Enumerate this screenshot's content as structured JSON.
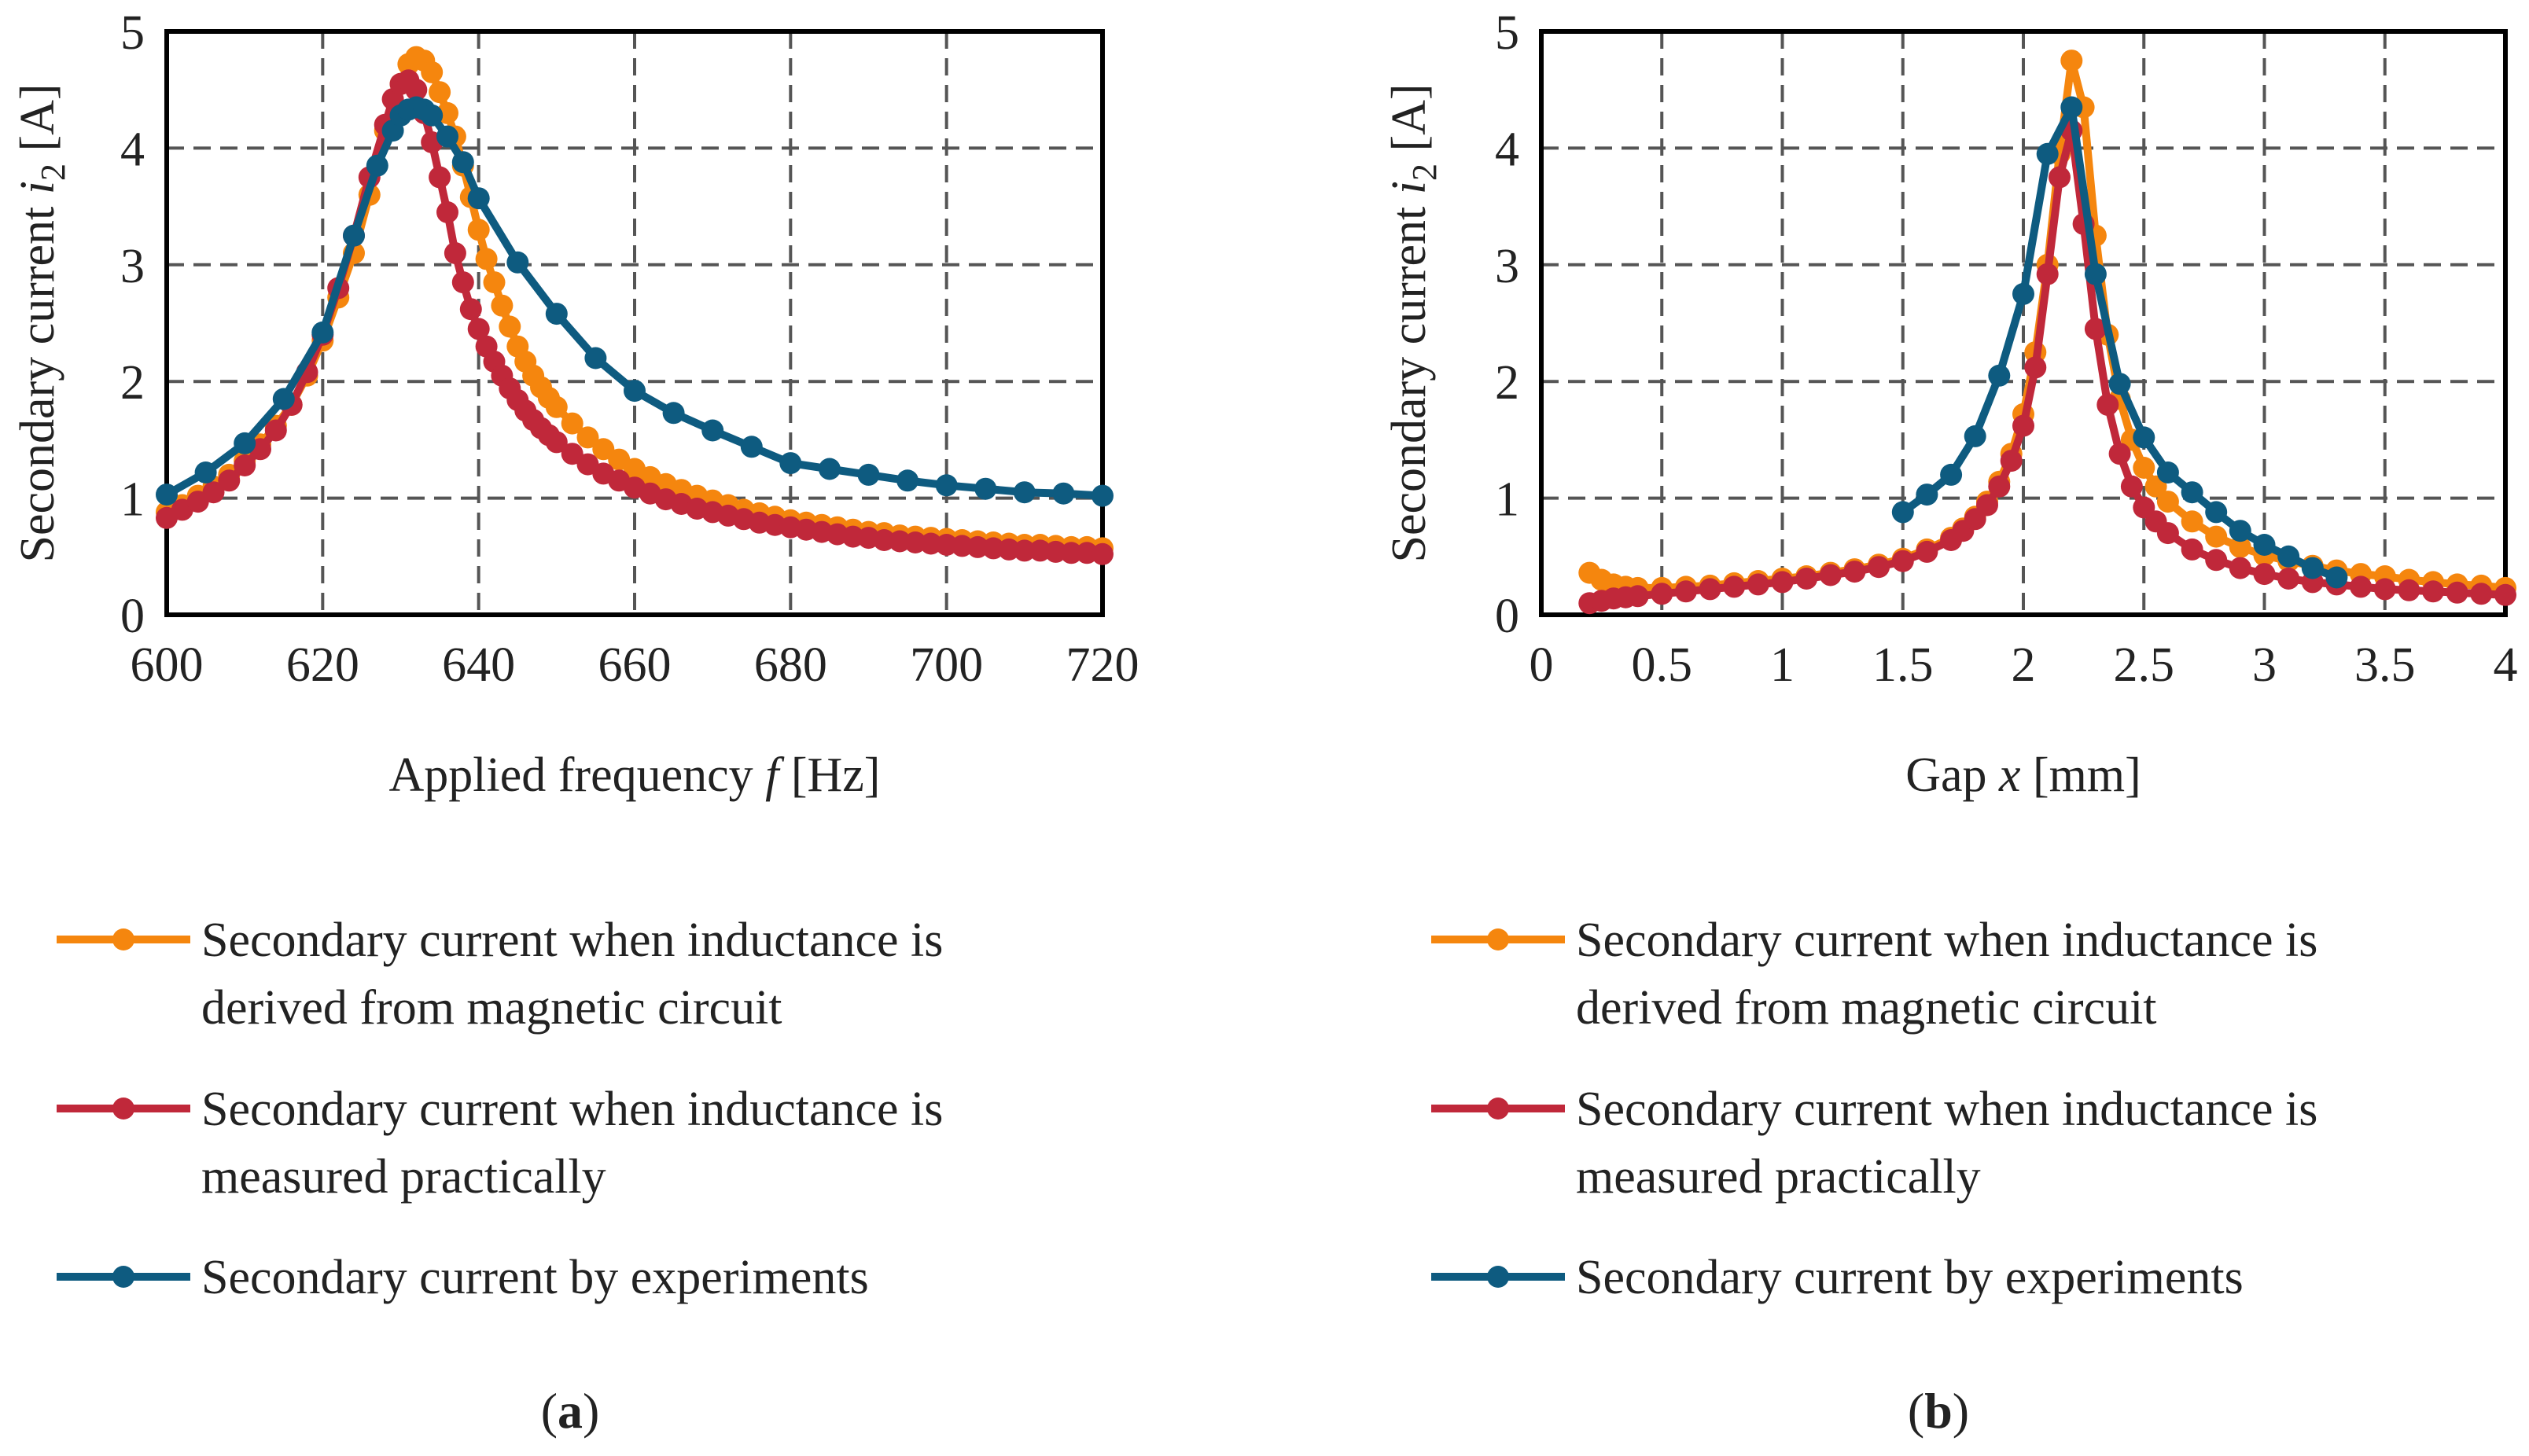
{
  "colors": {
    "orange": "#F5860E",
    "red": "#C0283A",
    "blue": "#0E5B80",
    "grid": "#555555",
    "axis": "#000000"
  },
  "chart_data": [
    {
      "type": "line",
      "panel_label": "a",
      "xlabel_prefix": "Applied frequency ",
      "xlabel_var": "f",
      "xlabel_suffix": " [Hz]",
      "ylabel_prefix": "Secondary current ",
      "ylabel_var": "i",
      "ylabel_sub": "2",
      "ylabel_suffix": " [A]",
      "xlim": [
        600,
        720
      ],
      "ylim": [
        0,
        5
      ],
      "grid": true,
      "legend_position": "bottom",
      "xticks": [
        {
          "value": 600,
          "label": "600"
        },
        {
          "value": 620,
          "label": "620"
        },
        {
          "value": 640,
          "label": "640"
        },
        {
          "value": 660,
          "label": "660"
        },
        {
          "value": 680,
          "label": "680"
        },
        {
          "value": 700,
          "label": "700"
        },
        {
          "value": 720,
          "label": "720"
        }
      ],
      "yticks": [
        {
          "value": 0,
          "label": "0"
        },
        {
          "value": 1,
          "label": "1"
        },
        {
          "value": 2,
          "label": "2"
        },
        {
          "value": 3,
          "label": "3"
        },
        {
          "value": 4,
          "label": "4"
        },
        {
          "value": 5,
          "label": "5"
        }
      ],
      "series": [
        {
          "name": "Secondary current when inductance is derived from magnetic circuit",
          "legend_lines": [
            "Secondary current when inductance is",
            "derived from magnetic circuit"
          ],
          "color_key": "orange",
          "x": [
            600,
            602,
            604,
            606,
            608,
            610,
            612,
            614,
            616,
            618,
            620,
            622,
            624,
            626,
            628,
            630,
            631,
            632,
            633,
            634,
            635,
            636,
            637,
            638,
            639,
            640,
            641,
            642,
            643,
            644,
            645,
            646,
            647,
            648,
            649,
            650,
            652,
            654,
            656,
            658,
            660,
            662,
            664,
            666,
            668,
            670,
            672,
            674,
            676,
            678,
            680,
            682,
            684,
            686,
            688,
            690,
            692,
            694,
            696,
            698,
            700,
            702,
            704,
            706,
            708,
            710,
            712,
            714,
            716,
            718,
            720
          ],
          "y": [
            0.88,
            0.94,
            1.02,
            1.1,
            1.2,
            1.32,
            1.46,
            1.62,
            1.8,
            2.05,
            2.35,
            2.72,
            3.1,
            3.6,
            4.15,
            4.55,
            4.72,
            4.78,
            4.75,
            4.65,
            4.48,
            4.3,
            4.1,
            3.85,
            3.58,
            3.3,
            3.05,
            2.85,
            2.65,
            2.47,
            2.3,
            2.17,
            2.05,
            1.95,
            1.86,
            1.78,
            1.64,
            1.52,
            1.42,
            1.33,
            1.25,
            1.18,
            1.12,
            1.07,
            1.02,
            0.98,
            0.94,
            0.9,
            0.87,
            0.84,
            0.81,
            0.79,
            0.77,
            0.75,
            0.73,
            0.71,
            0.7,
            0.68,
            0.67,
            0.66,
            0.65,
            0.64,
            0.63,
            0.62,
            0.61,
            0.6,
            0.6,
            0.59,
            0.58,
            0.58,
            0.57
          ]
        },
        {
          "name": "Secondary current when inductance is measured practically",
          "legend_lines": [
            "Secondary current when inductance is",
            "measured practically"
          ],
          "color_key": "red",
          "x": [
            600,
            602,
            604,
            606,
            608,
            610,
            612,
            614,
            616,
            618,
            620,
            622,
            624,
            626,
            628,
            629,
            630,
            631,
            632,
            633,
            634,
            635,
            636,
            637,
            638,
            639,
            640,
            641,
            642,
            643,
            644,
            645,
            646,
            647,
            648,
            649,
            650,
            652,
            654,
            656,
            658,
            660,
            662,
            664,
            666,
            668,
            670,
            672,
            674,
            676,
            678,
            680,
            682,
            684,
            686,
            688,
            690,
            692,
            694,
            696,
            698,
            700,
            702,
            704,
            706,
            708,
            710,
            712,
            714,
            716,
            718,
            720
          ],
          "y": [
            0.83,
            0.9,
            0.97,
            1.05,
            1.15,
            1.28,
            1.42,
            1.58,
            1.8,
            2.08,
            2.4,
            2.8,
            3.25,
            3.75,
            4.2,
            4.42,
            4.55,
            4.58,
            4.5,
            4.3,
            4.05,
            3.75,
            3.45,
            3.1,
            2.85,
            2.62,
            2.45,
            2.3,
            2.17,
            2.05,
            1.94,
            1.84,
            1.75,
            1.67,
            1.6,
            1.54,
            1.48,
            1.38,
            1.29,
            1.21,
            1.15,
            1.09,
            1.04,
            0.99,
            0.95,
            0.91,
            0.88,
            0.85,
            0.82,
            0.79,
            0.77,
            0.75,
            0.73,
            0.71,
            0.69,
            0.67,
            0.66,
            0.64,
            0.63,
            0.62,
            0.61,
            0.6,
            0.59,
            0.58,
            0.57,
            0.56,
            0.55,
            0.55,
            0.54,
            0.53,
            0.53,
            0.52
          ]
        },
        {
          "name": "Secondary current by experiments",
          "legend_lines": [
            "Secondary current by experiments"
          ],
          "color_key": "blue",
          "x": [
            600,
            605,
            610,
            615,
            620,
            624,
            627,
            629,
            630,
            631,
            632,
            633,
            634,
            636,
            638,
            640,
            645,
            650,
            655,
            660,
            665,
            670,
            675,
            680,
            685,
            690,
            695,
            700,
            705,
            710,
            715,
            720
          ],
          "y": [
            1.03,
            1.22,
            1.47,
            1.85,
            2.42,
            3.25,
            3.85,
            4.15,
            4.28,
            4.33,
            4.35,
            4.33,
            4.28,
            4.1,
            3.88,
            3.57,
            3.02,
            2.58,
            2.2,
            1.92,
            1.73,
            1.58,
            1.44,
            1.3,
            1.25,
            1.2,
            1.15,
            1.11,
            1.08,
            1.05,
            1.04,
            1.02
          ]
        }
      ]
    },
    {
      "type": "line",
      "panel_label": "b",
      "xlabel_prefix": "Gap ",
      "xlabel_var": "x",
      "xlabel_suffix": " [mm]",
      "ylabel_prefix": "Secondary current ",
      "ylabel_var": "i",
      "ylabel_sub": "2",
      "ylabel_suffix": " [A]",
      "xlim": [
        0,
        4
      ],
      "ylim": [
        0,
        5
      ],
      "grid": true,
      "legend_position": "bottom",
      "xticks": [
        {
          "value": 0,
          "label": "0"
        },
        {
          "value": 0.5,
          "label": "0.5"
        },
        {
          "value": 1,
          "label": "1"
        },
        {
          "value": 1.5,
          "label": "1.5"
        },
        {
          "value": 2,
          "label": "2"
        },
        {
          "value": 2.5,
          "label": "2.5"
        },
        {
          "value": 3,
          "label": "3"
        },
        {
          "value": 3.5,
          "label": "3.5"
        },
        {
          "value": 4,
          "label": "4"
        }
      ],
      "yticks": [
        {
          "value": 0,
          "label": "0"
        },
        {
          "value": 1,
          "label": "1"
        },
        {
          "value": 2,
          "label": "2"
        },
        {
          "value": 3,
          "label": "3"
        },
        {
          "value": 4,
          "label": "4"
        },
        {
          "value": 5,
          "label": "5"
        }
      ],
      "series": [
        {
          "name": "Secondary current when inductance is derived from magnetic circuit",
          "legend_lines": [
            "Secondary current when inductance is",
            "derived from magnetic circuit"
          ],
          "color_key": "orange",
          "x": [
            0.2,
            0.25,
            0.3,
            0.35,
            0.4,
            0.5,
            0.6,
            0.7,
            0.8,
            0.9,
            1.0,
            1.1,
            1.2,
            1.3,
            1.4,
            1.5,
            1.6,
            1.7,
            1.75,
            1.8,
            1.85,
            1.9,
            1.95,
            2.0,
            2.05,
            2.1,
            2.15,
            2.2,
            2.25,
            2.3,
            2.35,
            2.4,
            2.45,
            2.5,
            2.55,
            2.6,
            2.7,
            2.8,
            2.9,
            3.0,
            3.1,
            3.2,
            3.3,
            3.4,
            3.5,
            3.6,
            3.7,
            3.8,
            3.9,
            4.0
          ],
          "y": [
            0.36,
            0.3,
            0.26,
            0.24,
            0.23,
            0.23,
            0.24,
            0.25,
            0.27,
            0.29,
            0.31,
            0.33,
            0.36,
            0.39,
            0.43,
            0.48,
            0.56,
            0.66,
            0.74,
            0.84,
            0.97,
            1.14,
            1.38,
            1.72,
            2.25,
            3.0,
            3.95,
            4.75,
            4.35,
            3.25,
            2.4,
            1.85,
            1.5,
            1.26,
            1.1,
            0.97,
            0.8,
            0.67,
            0.58,
            0.51,
            0.46,
            0.42,
            0.38,
            0.35,
            0.33,
            0.3,
            0.28,
            0.26,
            0.25,
            0.23
          ]
        },
        {
          "name": "Secondary current when inductance is measured practically",
          "legend_lines": [
            "Secondary current when inductance is",
            "measured practically"
          ],
          "color_key": "red",
          "x": [
            0.2,
            0.25,
            0.3,
            0.35,
            0.4,
            0.5,
            0.6,
            0.7,
            0.8,
            0.9,
            1.0,
            1.1,
            1.2,
            1.3,
            1.4,
            1.5,
            1.6,
            1.7,
            1.75,
            1.8,
            1.85,
            1.9,
            1.95,
            2.0,
            2.05,
            2.1,
            2.15,
            2.2,
            2.25,
            2.3,
            2.35,
            2.4,
            2.45,
            2.5,
            2.55,
            2.6,
            2.7,
            2.8,
            2.9,
            3.0,
            3.1,
            3.2,
            3.3,
            3.4,
            3.5,
            3.6,
            3.7,
            3.8,
            3.9,
            4.0
          ],
          "y": [
            0.1,
            0.12,
            0.14,
            0.15,
            0.16,
            0.18,
            0.2,
            0.22,
            0.24,
            0.26,
            0.28,
            0.31,
            0.34,
            0.37,
            0.41,
            0.46,
            0.54,
            0.64,
            0.72,
            0.82,
            0.94,
            1.1,
            1.32,
            1.62,
            2.12,
            2.92,
            3.75,
            4.15,
            3.35,
            2.45,
            1.8,
            1.38,
            1.1,
            0.92,
            0.8,
            0.7,
            0.56,
            0.47,
            0.4,
            0.35,
            0.31,
            0.28,
            0.26,
            0.24,
            0.22,
            0.21,
            0.2,
            0.19,
            0.18,
            0.17
          ]
        },
        {
          "name": "Secondary current by experiments",
          "legend_lines": [
            "Secondary current by experiments"
          ],
          "color_key": "blue",
          "x": [
            1.5,
            1.6,
            1.7,
            1.8,
            1.9,
            2.0,
            2.1,
            2.2,
            2.3,
            2.4,
            2.5,
            2.6,
            2.7,
            2.8,
            2.9,
            3.0,
            3.1,
            3.2,
            3.3
          ],
          "y": [
            0.88,
            1.03,
            1.2,
            1.53,
            2.05,
            2.75,
            3.95,
            4.35,
            2.92,
            1.98,
            1.52,
            1.22,
            1.05,
            0.88,
            0.72,
            0.6,
            0.5,
            0.4,
            0.32
          ]
        }
      ]
    }
  ]
}
